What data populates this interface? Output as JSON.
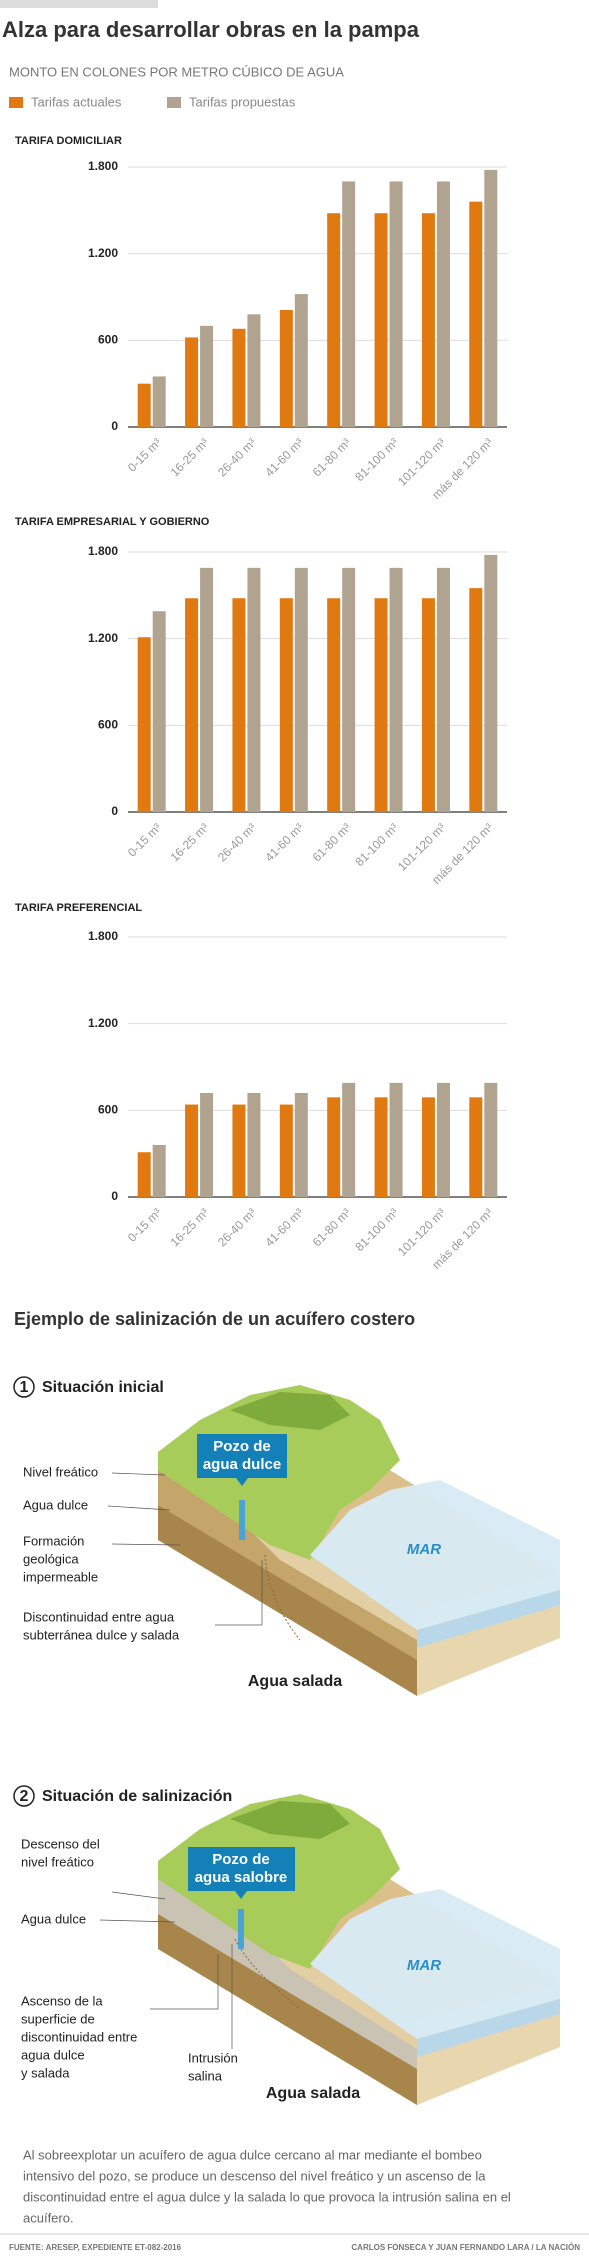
{
  "header": {
    "title": "Alza para  desarrollar obras en la pampa",
    "subtitle": "MONTO EN COLONES POR METRO CÚBICO DE AGUA"
  },
  "chart_data": [
    {
      "type": "bar",
      "title": "TARIFA DOMICILIAR",
      "categories": [
        "0-15 m³",
        "16-25 m³",
        "26-40 m³",
        "41-60 m³",
        "61-80 m³",
        "81-100 m³",
        "101-120 m³",
        "más de 120 m³"
      ],
      "series": [
        {
          "name": "Tarifas actuales",
          "color": "#e07a10",
          "values": [
            300,
            620,
            680,
            810,
            1480,
            1480,
            1480,
            1560
          ]
        },
        {
          "name": "Tarifas propuestas",
          "color": "#b0a390",
          "values": [
            350,
            700,
            780,
            920,
            1700,
            1700,
            1700,
            1780
          ]
        }
      ],
      "ylim": [
        0,
        1800
      ],
      "yticks": [
        0,
        600,
        {
          "value": 1200,
          "label": "1.200"
        },
        {
          "value": 1800,
          "label": "1.800"
        }
      ],
      "grid": true
    },
    {
      "type": "bar",
      "title": "TARIFA EMPRESARIAL Y GOBIERNO",
      "categories": [
        "0-15 m³",
        "16-25 m³",
        "26-40 m³",
        "41-60 m³",
        "61-80 m³",
        "81-100 m³",
        "101-120 m³",
        "más de 120 m³"
      ],
      "series": [
        {
          "name": "Tarifas actuales",
          "color": "#e07a10",
          "values": [
            1210,
            1480,
            1480,
            1480,
            1480,
            1480,
            1480,
            1550
          ]
        },
        {
          "name": "Tarifas propuestas",
          "color": "#b0a390",
          "values": [
            1390,
            1690,
            1690,
            1690,
            1690,
            1690,
            1690,
            1780
          ]
        }
      ],
      "ylim": [
        0,
        1800
      ],
      "yticks": [
        0,
        600,
        {
          "value": 1200,
          "label": "1.200"
        },
        {
          "value": 1800,
          "label": "1.800"
        }
      ],
      "grid": true
    },
    {
      "type": "bar",
      "title": "TARIFA PREFERENCIAL",
      "categories": [
        "0-15 m³",
        "16-25 m³",
        "26-40 m³",
        "41-60 m³",
        "61-80 m³",
        "81-100 m³",
        "101-120 m³",
        "más de 120 m³"
      ],
      "series": [
        {
          "name": "Tarifas actuales",
          "color": "#e07a10",
          "values": [
            310,
            640,
            640,
            640,
            690,
            690,
            690,
            690
          ]
        },
        {
          "name": "Tarifas propuestas",
          "color": "#b0a390",
          "values": [
            360,
            720,
            720,
            720,
            790,
            790,
            790,
            790
          ]
        }
      ],
      "ylim": [
        0,
        1800
      ],
      "yticks": [
        0,
        600,
        {
          "value": 1200,
          "label": "1.200"
        },
        {
          "value": 1800,
          "label": "1.800"
        }
      ],
      "grid": true
    }
  ],
  "diagram": {
    "title": "Ejemplo de salinización de un acuífero costero",
    "step1": {
      "number": "1",
      "title": "Situación inicial",
      "well": [
        "Pozo de",
        "agua dulce"
      ],
      "sea": "MAR",
      "salt": "Agua salada",
      "labels": [
        [
          "Nivel freático"
        ],
        [
          "Agua dulce"
        ],
        [
          "Formación",
          "geológica",
          "impermeable"
        ],
        [
          "Discontinuidad entre agua",
          "subterránea dulce y salada"
        ]
      ]
    },
    "step2": {
      "number": "2",
      "title": "Situación de salinización",
      "well": [
        "Pozo de",
        "agua salobre"
      ],
      "sea": "MAR",
      "salt": "Agua salada",
      "intrusion": [
        "Intrusión",
        "salina"
      ],
      "labels": [
        [
          "Descenso del",
          "nivel freático"
        ],
        [
          "Agua dulce"
        ],
        [
          "Ascenso de la",
          "superficie de",
          "discontinuidad entre",
          "agua dulce",
          "y salada"
        ]
      ]
    },
    "caption": [
      "Al sobreexplotar un acuífero de agua dulce cercano al mar mediante el bombeo",
      "intensivo del pozo, se produce un descenso del nivel freático y un ascenso de la",
      "discontinuidad entre el agua dulce y la salada lo que provoca la intrusión salina en el",
      "acuífero."
    ]
  },
  "footer": {
    "source": "FUENTE: ARESEP, EXPEDIENTE ET-082-2016",
    "credit": "CARLOS FONSECA Y JUAN FERNANDO LARA / LA NACIÓN"
  }
}
